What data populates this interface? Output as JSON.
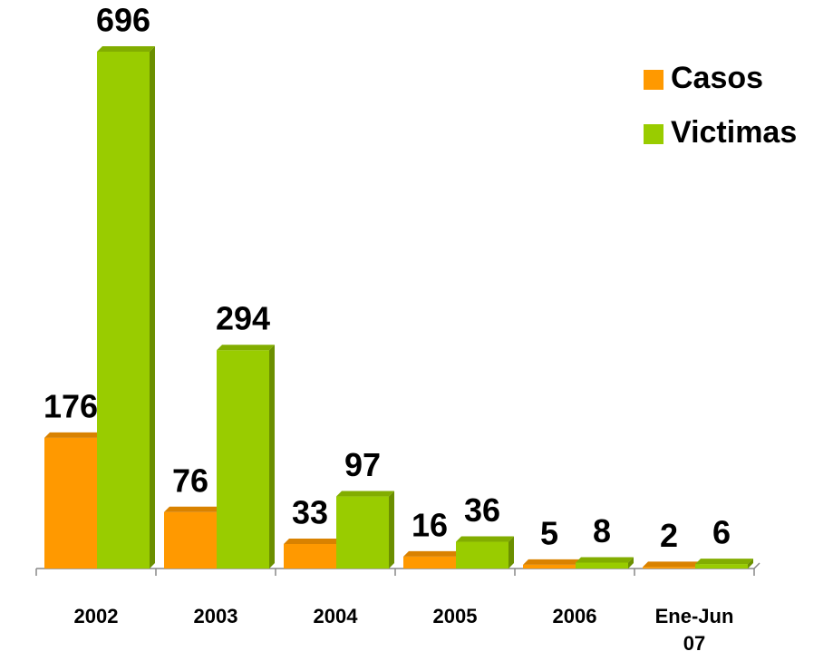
{
  "chart_data": {
    "type": "bar",
    "categories": [
      "2002",
      "2003",
      "2004",
      "2005",
      "2006",
      "Ene-Jun 07"
    ],
    "series": [
      {
        "name": "Casos",
        "color": "#ff9900",
        "values": [
          176,
          76,
          33,
          16,
          5,
          2
        ]
      },
      {
        "name": "Victimas",
        "color": "#99cc00",
        "values": [
          696,
          294,
          97,
          36,
          8,
          6
        ]
      }
    ],
    "legend": "top-right",
    "grid": false
  }
}
